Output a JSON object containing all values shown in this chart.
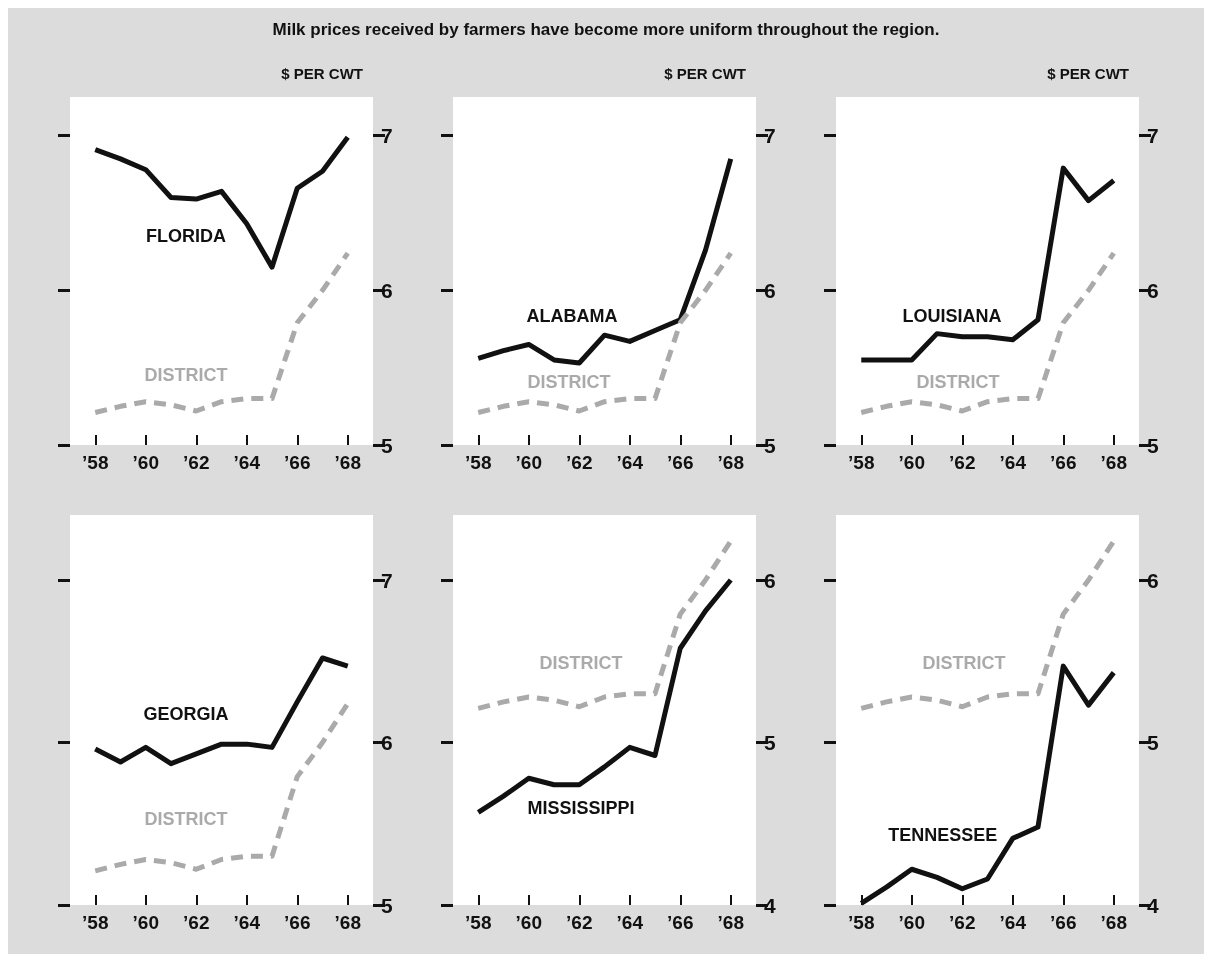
{
  "chart_data": [
    {
      "type": "line",
      "title": "Milk prices received by farmers have become more uniform throughout the region.",
      "ylabel": "$ PER CWT",
      "marker": "none",
      "x": [
        1958,
        1959,
        1960,
        1961,
        1962,
        1963,
        1964,
        1965,
        1966,
        1967,
        1968
      ],
      "xlim": [
        1957,
        1969
      ],
      "xticks": [
        {
          "value": 1958,
          "label": "’58"
        },
        {
          "value": 1960,
          "label": "’60"
        },
        {
          "value": 1962,
          "label": "’62"
        },
        {
          "value": 1964,
          "label": "’64"
        },
        {
          "value": 1966,
          "label": "’66"
        },
        {
          "value": 1968,
          "label": "’68"
        }
      ],
      "ylim": [
        5,
        7.25
      ],
      "yticks": [
        5,
        6,
        7
      ],
      "series": [
        {
          "name": "FLORIDA",
          "color": "#111111",
          "line_style": "solid",
          "values": [
            6.91,
            6.85,
            6.78,
            6.6,
            6.59,
            6.64,
            6.43,
            6.15,
            6.66,
            6.77,
            6.99
          ]
        },
        {
          "name": "DISTRICT",
          "color": "#aaaaaa",
          "line_style": "dashed",
          "values": [
            5.21,
            5.25,
            5.28,
            5.26,
            5.22,
            5.28,
            5.3,
            5.3,
            5.79,
            6.0,
            6.24
          ]
        }
      ]
    },
    {
      "type": "line",
      "ylabel": "$ PER CWT",
      "marker": "none",
      "x": [
        1958,
        1959,
        1960,
        1961,
        1962,
        1963,
        1964,
        1965,
        1966,
        1967,
        1968
      ],
      "xlim": [
        1957,
        1969
      ],
      "xticks": [
        {
          "value": 1958,
          "label": "’58"
        },
        {
          "value": 1960,
          "label": "’60"
        },
        {
          "value": 1962,
          "label": "’62"
        },
        {
          "value": 1964,
          "label": "’64"
        },
        {
          "value": 1966,
          "label": "’66"
        },
        {
          "value": 1968,
          "label": "’68"
        }
      ],
      "ylim": [
        5,
        7.25
      ],
      "yticks": [
        5,
        6,
        7
      ],
      "series": [
        {
          "name": "ALABAMA",
          "color": "#111111",
          "line_style": "solid",
          "values": [
            5.56,
            5.61,
            5.65,
            5.55,
            5.53,
            5.71,
            5.67,
            5.74,
            5.81,
            6.26,
            6.85
          ]
        },
        {
          "name": "DISTRICT",
          "color": "#aaaaaa",
          "line_style": "dashed",
          "values": [
            5.21,
            5.25,
            5.28,
            5.26,
            5.22,
            5.28,
            5.3,
            5.3,
            5.79,
            6.0,
            6.24
          ]
        }
      ]
    },
    {
      "type": "line",
      "ylabel": "$ PER CWT",
      "marker": "none",
      "x": [
        1958,
        1959,
        1960,
        1961,
        1962,
        1963,
        1964,
        1965,
        1966,
        1967,
        1968
      ],
      "xlim": [
        1957,
        1969
      ],
      "xticks": [
        {
          "value": 1958,
          "label": "’58"
        },
        {
          "value": 1960,
          "label": "’60"
        },
        {
          "value": 1962,
          "label": "’62"
        },
        {
          "value": 1964,
          "label": "’64"
        },
        {
          "value": 1966,
          "label": "’66"
        },
        {
          "value": 1968,
          "label": "’68"
        }
      ],
      "ylim": [
        5,
        7.25
      ],
      "yticks": [
        5,
        6,
        7
      ],
      "series": [
        {
          "name": "LOUISIANA",
          "color": "#111111",
          "line_style": "solid",
          "values": [
            5.55,
            5.55,
            5.55,
            5.72,
            5.7,
            5.7,
            5.68,
            5.81,
            6.79,
            6.58,
            6.71
          ]
        },
        {
          "name": "DISTRICT",
          "color": "#aaaaaa",
          "line_style": "dashed",
          "values": [
            5.21,
            5.25,
            5.28,
            5.26,
            5.22,
            5.28,
            5.3,
            5.3,
            5.79,
            6.0,
            6.24
          ]
        }
      ]
    },
    {
      "type": "line",
      "marker": "none",
      "x": [
        1958,
        1959,
        1960,
        1961,
        1962,
        1963,
        1964,
        1965,
        1966,
        1967,
        1968
      ],
      "xlim": [
        1957,
        1969
      ],
      "xticks": [
        {
          "value": 1958,
          "label": "’58"
        },
        {
          "value": 1960,
          "label": "’60"
        },
        {
          "value": 1962,
          "label": "’62"
        },
        {
          "value": 1964,
          "label": "’64"
        },
        {
          "value": 1966,
          "label": "’66"
        },
        {
          "value": 1968,
          "label": "’68"
        }
      ],
      "ylim": [
        5,
        7.4
      ],
      "yticks": [
        5,
        6,
        7
      ],
      "series": [
        {
          "name": "GEORGIA",
          "color": "#111111",
          "line_style": "solid",
          "values": [
            5.96,
            5.88,
            5.97,
            5.87,
            5.93,
            5.99,
            5.99,
            5.97,
            6.25,
            6.52,
            6.47
          ]
        },
        {
          "name": "DISTRICT",
          "color": "#aaaaaa",
          "line_style": "dashed",
          "values": [
            5.21,
            5.25,
            5.28,
            5.26,
            5.22,
            5.28,
            5.3,
            5.3,
            5.79,
            6.0,
            6.24
          ]
        }
      ]
    },
    {
      "type": "line",
      "marker": "none",
      "x": [
        1958,
        1959,
        1960,
        1961,
        1962,
        1963,
        1964,
        1965,
        1966,
        1967,
        1968
      ],
      "xlim": [
        1957,
        1969
      ],
      "xticks": [
        {
          "value": 1958,
          "label": "’58"
        },
        {
          "value": 1960,
          "label": "’60"
        },
        {
          "value": 1962,
          "label": "’62"
        },
        {
          "value": 1964,
          "label": "’64"
        },
        {
          "value": 1966,
          "label": "’66"
        },
        {
          "value": 1968,
          "label": "’68"
        }
      ],
      "ylim": [
        4,
        6.4
      ],
      "yticks": [
        4,
        5,
        6
      ],
      "series": [
        {
          "name": "MISSISSIPPI",
          "color": "#111111",
          "line_style": "solid",
          "values": [
            4.57,
            4.67,
            4.78,
            4.74,
            4.74,
            4.85,
            4.97,
            4.92,
            5.58,
            5.81,
            6.0
          ]
        },
        {
          "name": "DISTRICT",
          "color": "#aaaaaa",
          "line_style": "dashed",
          "values": [
            5.21,
            5.25,
            5.28,
            5.26,
            5.22,
            5.28,
            5.3,
            5.3,
            5.79,
            6.0,
            6.24
          ]
        }
      ]
    },
    {
      "type": "line",
      "marker": "none",
      "x": [
        1958,
        1959,
        1960,
        1961,
        1962,
        1963,
        1964,
        1965,
        1966,
        1967,
        1968
      ],
      "xlim": [
        1957,
        1969
      ],
      "xticks": [
        {
          "value": 1958,
          "label": "’58"
        },
        {
          "value": 1960,
          "label": "’60"
        },
        {
          "value": 1962,
          "label": "’62"
        },
        {
          "value": 1964,
          "label": "’64"
        },
        {
          "value": 1966,
          "label": "’66"
        },
        {
          "value": 1968,
          "label": "’68"
        }
      ],
      "ylim": [
        4,
        6.4
      ],
      "yticks": [
        4,
        5,
        6
      ],
      "series": [
        {
          "name": "TENNESSEE",
          "color": "#111111",
          "line_style": "solid",
          "values": [
            4.01,
            4.11,
            4.22,
            4.17,
            4.1,
            4.16,
            4.41,
            4.48,
            5.47,
            5.23,
            5.43
          ]
        },
        {
          "name": "DISTRICT",
          "color": "#aaaaaa",
          "line_style": "dashed",
          "values": [
            5.21,
            5.25,
            5.28,
            5.26,
            5.22,
            5.28,
            5.3,
            5.3,
            5.79,
            6.0,
            6.24
          ]
        }
      ]
    }
  ]
}
